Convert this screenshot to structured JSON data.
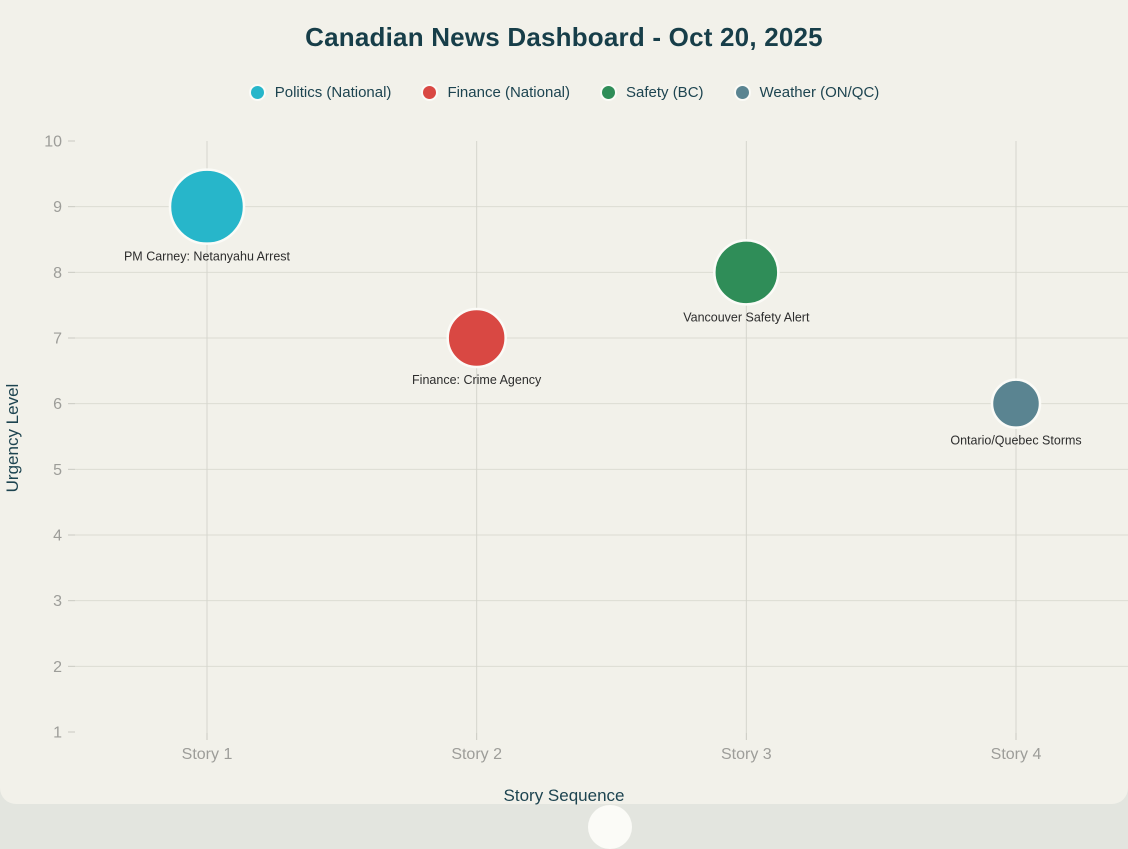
{
  "header": {
    "title": "Canadian News Dashboard - Oct 20, 2025"
  },
  "chart_data": {
    "type": "scatter",
    "title": "Canadian News Dashboard - Oct 20, 2025",
    "xlabel": "Story Sequence",
    "ylabel": "Urgency Level",
    "categories": [
      "Story 1",
      "Story 2",
      "Story 3",
      "Story 4"
    ],
    "y_ticks": [
      1,
      2,
      3,
      4,
      5,
      6,
      7,
      8,
      9,
      10
    ],
    "ylim": [
      1,
      10
    ],
    "grid": true,
    "legend_position": "top-center",
    "series": [
      {
        "name": "Politics (National)",
        "color": "#27b6ca",
        "x": 1,
        "y": 9,
        "point_label": "PM Carney: Netanyahu Arrest",
        "bubble_radius_px": 37
      },
      {
        "name": "Finance (National)",
        "color": "#d94843",
        "x": 2,
        "y": 7,
        "point_label": "Finance: Crime Agency",
        "bubble_radius_px": 29
      },
      {
        "name": "Safety (BC)",
        "color": "#2f8d58",
        "x": 3,
        "y": 8,
        "point_label": "Vancouver Safety Alert",
        "bubble_radius_px": 32
      },
      {
        "name": "Weather (ON/QC)",
        "color": "#5a8491",
        "x": 4,
        "y": 6,
        "point_label": "Ontario/Quebec Storms",
        "bubble_radius_px": 24
      }
    ]
  },
  "colors": {
    "background": "#f2f1ea",
    "page_behind": "#e3e5df",
    "title_text": "#173e49",
    "axis_title_text": "#1d4450",
    "tick_text": "#9d9d99",
    "point_label_text": "#2d2d2d",
    "gridline_h": "#dcdcd3",
    "gridline_v": "#d5d5cd",
    "tick_mark": "#c9c9c1",
    "bubble_stroke": "#fbfbf7"
  }
}
